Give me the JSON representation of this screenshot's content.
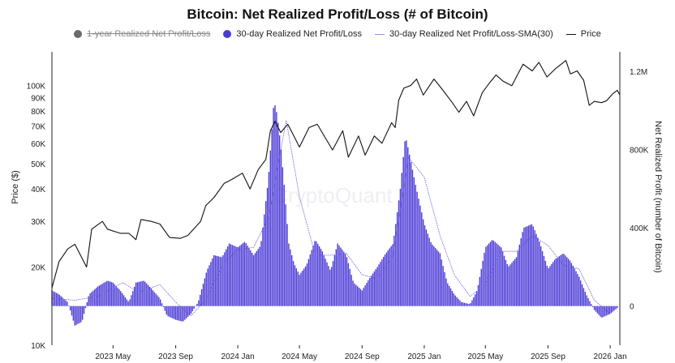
{
  "title": "Bitcoin: Net Realized Profit/Loss (# of Bitcoin)",
  "watermark": "CryptoQuant",
  "legend": [
    {
      "label": "1-year Realized Net Profit/Loss",
      "type": "dot",
      "color": "#6b6b6b",
      "hidden": true
    },
    {
      "label": "30-day Realized Net Profit/Loss",
      "type": "dot",
      "color": "#4b3ad6",
      "hidden": false
    },
    {
      "label": "30-day Realized Net Profit/Loss-SMA(30)",
      "type": "thinline",
      "color": "#6a5cd8",
      "hidden": false
    },
    {
      "label": "Price",
      "type": "line",
      "color": "#111111",
      "hidden": false
    }
  ],
  "colors": {
    "bars": "#4b3ad6",
    "sma": "#6a5cd8",
    "price": "#111111",
    "axis": "#222222"
  },
  "chart_data": {
    "type": "bar",
    "x_start": "2023-01-01",
    "x_end": "2026-01-20",
    "x_ticks": [
      {
        "label": "2023 May",
        "date": "2023-05-01"
      },
      {
        "label": "2023 Sep",
        "date": "2023-09-01"
      },
      {
        "label": "2024 Jan",
        "date": "2024-01-01"
      },
      {
        "label": "2024 May",
        "date": "2024-05-01"
      },
      {
        "label": "2024 Sep",
        "date": "2024-09-01"
      },
      {
        "label": "2025 Jan",
        "date": "2025-01-01"
      },
      {
        "label": "2025 May",
        "date": "2025-05-01"
      },
      {
        "label": "2025 Sep",
        "date": "2025-09-01"
      },
      {
        "label": "2026 Jan",
        "date": "2026-01-01"
      }
    ],
    "y_left": {
      "label": "Price ($)",
      "scale": "log",
      "range": [
        10000,
        135000
      ],
      "ticks": [
        {
          "label": "10K",
          "value": 10000
        },
        {
          "label": "20K",
          "value": 20000
        },
        {
          "label": "30K",
          "value": 30000
        },
        {
          "label": "40K",
          "value": 40000
        },
        {
          "label": "50K",
          "value": 50000
        },
        {
          "label": "60K",
          "value": 60000
        },
        {
          "label": "70K",
          "value": 70000
        },
        {
          "label": "80K",
          "value": 80000
        },
        {
          "label": "90K",
          "value": 90000
        },
        {
          "label": "100K",
          "value": 100000
        }
      ]
    },
    "y_right": {
      "label": "Net Realized Profit (number of Bitcoin)",
      "scale": "linear",
      "range": [
        -200000,
        1300000
      ],
      "ticks": [
        {
          "label": "0",
          "value": 0
        },
        {
          "label": "400K",
          "value": 400000
        },
        {
          "label": "800K",
          "value": 800000
        },
        {
          "label": "1.2M",
          "value": 1200000
        }
      ]
    },
    "series": [
      {
        "name": "30-day Realized Net Profit/Loss",
        "kind": "bars",
        "points": [
          [
            "2023-01-01",
            80000
          ],
          [
            "2023-01-15",
            60000
          ],
          [
            "2023-02-01",
            20000
          ],
          [
            "2023-02-15",
            -100000
          ],
          [
            "2023-03-01",
            -80000
          ],
          [
            "2023-03-15",
            60000
          ],
          [
            "2023-04-01",
            100000
          ],
          [
            "2023-04-20",
            130000
          ],
          [
            "2023-05-01",
            120000
          ],
          [
            "2023-05-15",
            80000
          ],
          [
            "2023-06-01",
            20000
          ],
          [
            "2023-06-15",
            120000
          ],
          [
            "2023-07-01",
            130000
          ],
          [
            "2023-07-15",
            90000
          ],
          [
            "2023-08-01",
            40000
          ],
          [
            "2023-08-15",
            -50000
          ],
          [
            "2023-09-01",
            -70000
          ],
          [
            "2023-09-15",
            -80000
          ],
          [
            "2023-10-01",
            -40000
          ],
          [
            "2023-10-15",
            20000
          ],
          [
            "2023-11-01",
            180000
          ],
          [
            "2023-11-15",
            260000
          ],
          [
            "2023-12-01",
            250000
          ],
          [
            "2023-12-15",
            320000
          ],
          [
            "2024-01-01",
            300000
          ],
          [
            "2024-01-15",
            330000
          ],
          [
            "2024-02-01",
            260000
          ],
          [
            "2024-02-15",
            310000
          ],
          [
            "2024-03-01",
            650000
          ],
          [
            "2024-03-12",
            1050000
          ],
          [
            "2024-03-18",
            980000
          ],
          [
            "2024-03-25",
            830000
          ],
          [
            "2024-04-01",
            620000
          ],
          [
            "2024-04-10",
            320000
          ],
          [
            "2024-04-20",
            220000
          ],
          [
            "2024-05-01",
            160000
          ],
          [
            "2024-05-15",
            210000
          ],
          [
            "2024-06-01",
            340000
          ],
          [
            "2024-06-15",
            280000
          ],
          [
            "2024-07-01",
            180000
          ],
          [
            "2024-07-15",
            320000
          ],
          [
            "2024-08-01",
            260000
          ],
          [
            "2024-08-15",
            120000
          ],
          [
            "2024-09-01",
            80000
          ],
          [
            "2024-09-15",
            140000
          ],
          [
            "2024-10-01",
            200000
          ],
          [
            "2024-10-15",
            260000
          ],
          [
            "2024-11-01",
            320000
          ],
          [
            "2024-11-15",
            600000
          ],
          [
            "2024-11-25",
            870000
          ],
          [
            "2024-12-01",
            800000
          ],
          [
            "2024-12-15",
            620000
          ],
          [
            "2025-01-01",
            420000
          ],
          [
            "2025-01-15",
            320000
          ],
          [
            "2025-02-01",
            270000
          ],
          [
            "2025-02-15",
            120000
          ],
          [
            "2025-03-01",
            60000
          ],
          [
            "2025-03-15",
            20000
          ],
          [
            "2025-04-01",
            10000
          ],
          [
            "2025-04-15",
            80000
          ],
          [
            "2025-05-01",
            300000
          ],
          [
            "2025-05-15",
            340000
          ],
          [
            "2025-06-01",
            300000
          ],
          [
            "2025-06-15",
            200000
          ],
          [
            "2025-07-01",
            250000
          ],
          [
            "2025-07-15",
            400000
          ],
          [
            "2025-08-01",
            420000
          ],
          [
            "2025-08-15",
            330000
          ],
          [
            "2025-09-01",
            190000
          ],
          [
            "2025-09-15",
            240000
          ],
          [
            "2025-10-01",
            270000
          ],
          [
            "2025-10-15",
            230000
          ],
          [
            "2025-11-01",
            150000
          ],
          [
            "2025-11-15",
            60000
          ],
          [
            "2025-12-01",
            -20000
          ],
          [
            "2025-12-15",
            -60000
          ],
          [
            "2026-01-01",
            -40000
          ],
          [
            "2026-01-15",
            -10000
          ]
        ]
      },
      {
        "name": "30-day Realized Net Profit/Loss-SMA(30)",
        "kind": "line",
        "points": [
          [
            "2023-01-01",
            40000
          ],
          [
            "2023-02-15",
            30000
          ],
          [
            "2023-04-01",
            50000
          ],
          [
            "2023-05-20",
            120000
          ],
          [
            "2023-06-20",
            70000
          ],
          [
            "2023-08-01",
            110000
          ],
          [
            "2023-09-01",
            20000
          ],
          [
            "2023-10-01",
            -50000
          ],
          [
            "2023-11-01",
            40000
          ],
          [
            "2023-12-01",
            210000
          ],
          [
            "2024-01-01",
            290000
          ],
          [
            "2024-02-01",
            300000
          ],
          [
            "2024-03-01",
            450000
          ],
          [
            "2024-04-05",
            950000
          ],
          [
            "2024-05-01",
            560000
          ],
          [
            "2024-06-01",
            260000
          ],
          [
            "2024-07-01",
            260000
          ],
          [
            "2024-08-01",
            270000
          ],
          [
            "2024-09-01",
            160000
          ],
          [
            "2024-10-01",
            140000
          ],
          [
            "2024-11-01",
            260000
          ],
          [
            "2024-12-01",
            760000
          ],
          [
            "2025-01-01",
            660000
          ],
          [
            "2025-02-01",
            360000
          ],
          [
            "2025-03-01",
            160000
          ],
          [
            "2025-04-01",
            50000
          ],
          [
            "2025-05-01",
            110000
          ],
          [
            "2025-06-01",
            280000
          ],
          [
            "2025-07-01",
            280000
          ],
          [
            "2025-08-01",
            360000
          ],
          [
            "2025-09-01",
            310000
          ],
          [
            "2025-10-01",
            210000
          ],
          [
            "2025-11-01",
            190000
          ],
          [
            "2025-12-01",
            30000
          ],
          [
            "2026-01-01",
            -40000
          ]
        ]
      },
      {
        "name": "Price",
        "kind": "line",
        "axis": "left",
        "points": [
          [
            "2023-01-01",
            16600
          ],
          [
            "2023-01-15",
            21000
          ],
          [
            "2023-02-01",
            23500
          ],
          [
            "2023-02-15",
            24500
          ],
          [
            "2023-03-10",
            20000
          ],
          [
            "2023-03-20",
            28000
          ],
          [
            "2023-04-10",
            30000
          ],
          [
            "2023-04-20",
            28000
          ],
          [
            "2023-05-15",
            27000
          ],
          [
            "2023-06-01",
            27000
          ],
          [
            "2023-06-15",
            25500
          ],
          [
            "2023-06-25",
            30500
          ],
          [
            "2023-07-15",
            30000
          ],
          [
            "2023-08-01",
            29300
          ],
          [
            "2023-08-20",
            26000
          ],
          [
            "2023-09-10",
            25800
          ],
          [
            "2023-09-25",
            26500
          ],
          [
            "2023-10-20",
            30000
          ],
          [
            "2023-10-30",
            34500
          ],
          [
            "2023-11-15",
            37000
          ],
          [
            "2023-12-05",
            42000
          ],
          [
            "2023-12-20",
            43500
          ],
          [
            "2024-01-10",
            46000
          ],
          [
            "2024-01-25",
            40000
          ],
          [
            "2024-02-10",
            47500
          ],
          [
            "2024-02-25",
            52000
          ],
          [
            "2024-03-05",
            67000
          ],
          [
            "2024-03-14",
            73000
          ],
          [
            "2024-03-25",
            66000
          ],
          [
            "2024-04-08",
            71000
          ],
          [
            "2024-04-20",
            64000
          ],
          [
            "2024-05-01",
            58000
          ],
          [
            "2024-05-20",
            69000
          ],
          [
            "2024-06-05",
            71000
          ],
          [
            "2024-06-25",
            61000
          ],
          [
            "2024-07-05",
            56500
          ],
          [
            "2024-07-25",
            67000
          ],
          [
            "2024-08-05",
            53000
          ],
          [
            "2024-08-25",
            64000
          ],
          [
            "2024-09-07",
            54000
          ],
          [
            "2024-09-25",
            64000
          ],
          [
            "2024-10-10",
            60000
          ],
          [
            "2024-10-29",
            72000
          ],
          [
            "2024-11-05",
            69000
          ],
          [
            "2024-11-12",
            88000
          ],
          [
            "2024-11-22",
            98000
          ],
          [
            "2024-12-05",
            100000
          ],
          [
            "2024-12-17",
            106000
          ],
          [
            "2024-12-30",
            92000
          ],
          [
            "2025-01-20",
            106000
          ],
          [
            "2025-02-05",
            97000
          ],
          [
            "2025-02-25",
            86000
          ],
          [
            "2025-03-10",
            79000
          ],
          [
            "2025-03-25",
            87000
          ],
          [
            "2025-04-08",
            76500
          ],
          [
            "2025-04-25",
            94000
          ],
          [
            "2025-05-10",
            103000
          ],
          [
            "2025-05-22",
            110000
          ],
          [
            "2025-06-05",
            104000
          ],
          [
            "2025-06-22",
            100000
          ],
          [
            "2025-07-14",
            121000
          ],
          [
            "2025-08-01",
            114000
          ],
          [
            "2025-08-14",
            123000
          ],
          [
            "2025-08-30",
            108000
          ],
          [
            "2025-09-15",
            116000
          ],
          [
            "2025-10-06",
            125000
          ],
          [
            "2025-10-15",
            111000
          ],
          [
            "2025-10-28",
            114000
          ],
          [
            "2025-11-10",
            105000
          ],
          [
            "2025-11-21",
            84000
          ],
          [
            "2025-12-01",
            87000
          ],
          [
            "2025-12-15",
            86000
          ],
          [
            "2025-12-25",
            87500
          ],
          [
            "2026-01-06",
            93000
          ],
          [
            "2026-01-15",
            96000
          ],
          [
            "2026-01-20",
            92000
          ]
        ]
      }
    ]
  }
}
